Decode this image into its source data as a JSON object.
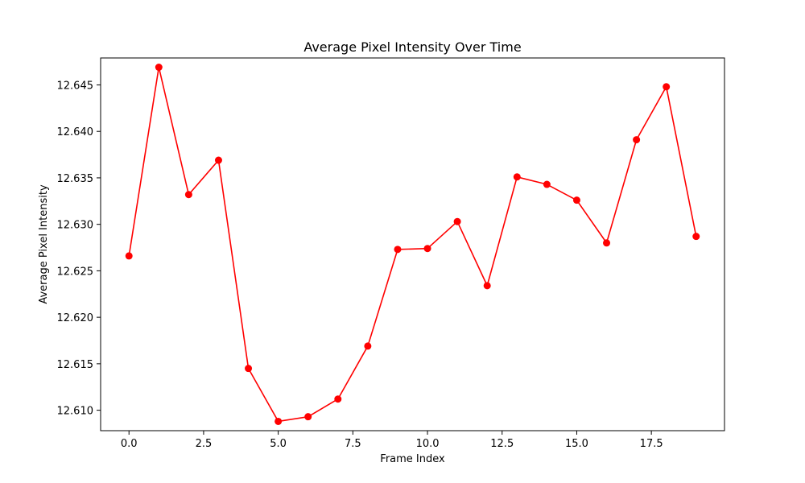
{
  "chart_data": {
    "type": "line",
    "title": "Average Pixel Intensity Over Time",
    "xlabel": "Frame Index",
    "ylabel": "Average Pixel Intensity",
    "x": [
      0,
      1,
      2,
      3,
      4,
      5,
      6,
      7,
      8,
      9,
      10,
      11,
      12,
      13,
      14,
      15,
      16,
      17,
      18,
      19
    ],
    "series": [
      {
        "values": [
          12.6266,
          12.6469,
          12.6332,
          12.6369,
          12.6145,
          12.6088,
          12.6093,
          12.6112,
          12.6169,
          12.6273,
          12.6274,
          12.6303,
          12.6234,
          12.6351,
          12.6343,
          12.6326,
          12.628,
          12.6391,
          12.6448,
          12.6287
        ],
        "color": "#ff0000",
        "marker": "circle"
      }
    ],
    "xlim": [
      -0.95,
      19.95
    ],
    "ylim": [
      12.6078,
      12.6479
    ],
    "xticks": [
      "0.0",
      "2.5",
      "5.0",
      "7.5",
      "10.0",
      "12.5",
      "15.0",
      "17.5"
    ],
    "yticks": [
      "12.610",
      "12.615",
      "12.620",
      "12.625",
      "12.630",
      "12.635",
      "12.640",
      "12.645"
    ],
    "grid": false,
    "legend": false
  }
}
